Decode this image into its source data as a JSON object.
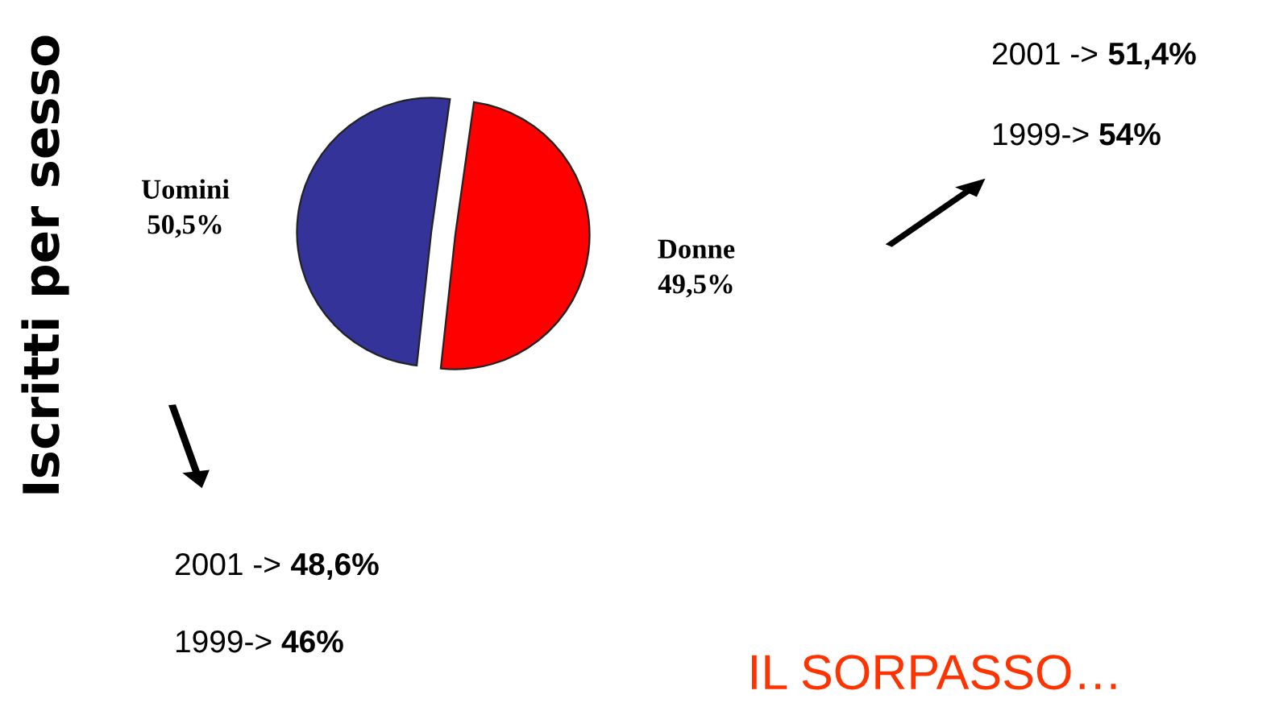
{
  "chart_data": {
    "type": "pie",
    "title": "Iscritti per sesso",
    "categories": [
      "Uomini",
      "Donne"
    ],
    "values": [
      50.5,
      49.5
    ],
    "colors": [
      "#333399",
      "#ff0000"
    ],
    "value_labels": [
      "50,5%",
      "49,5%"
    ],
    "annotations": [
      "2001 -> 51,4%",
      "1999-> 54%",
      "2001 -> 48,6%",
      "1999-> 46%",
      "IL SORPASSO…"
    ]
  }
}
